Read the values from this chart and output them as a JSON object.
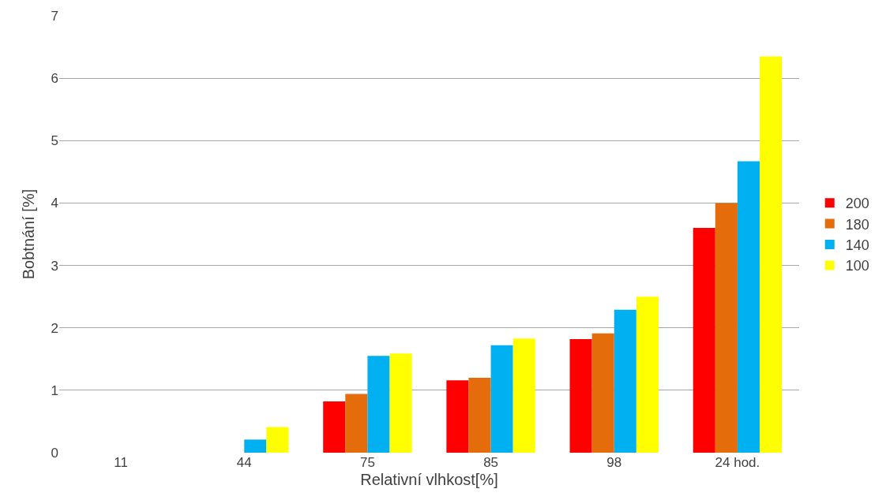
{
  "chart_data": {
    "type": "bar",
    "xlabel": "Relativní vlhkost[%]",
    "ylabel": "Bobtnání [%]",
    "categories": [
      "11",
      "44",
      "75",
      "85",
      "98",
      "24 hod."
    ],
    "series": [
      {
        "name": "200",
        "color": "#ff0000",
        "values": [
          0,
          0,
          0.82,
          1.16,
          1.82,
          3.6
        ]
      },
      {
        "name": "180",
        "color": "#e46c0a",
        "values": [
          0,
          0,
          0.94,
          1.2,
          1.91,
          4.0
        ]
      },
      {
        "name": "140",
        "color": "#00b0f0",
        "values": [
          0,
          0.21,
          1.55,
          1.72,
          2.29,
          4.67
        ]
      },
      {
        "name": "100",
        "color": "#ffff00",
        "values": [
          0,
          0.41,
          1.59,
          1.83,
          2.5,
          6.35
        ]
      }
    ],
    "ylim": [
      0,
      7
    ],
    "yticks": [
      0,
      1,
      2,
      3,
      4,
      5,
      6,
      7
    ],
    "grid": "y",
    "legend": "right"
  }
}
